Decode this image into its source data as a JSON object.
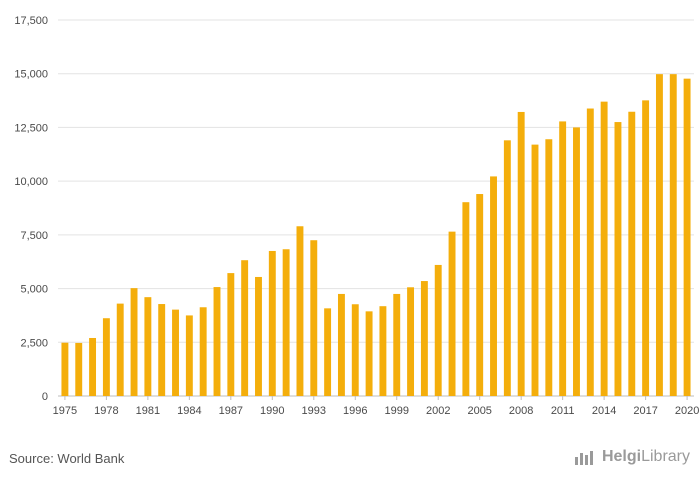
{
  "chart_data": {
    "type": "bar",
    "title": "",
    "xlabel": "",
    "ylabel": "",
    "ylim": [
      0,
      17500
    ],
    "yticks": [
      0,
      2500,
      5000,
      7500,
      10000,
      12500,
      15000,
      17500
    ],
    "ytick_labels": [
      "0",
      "2,500",
      "5,000",
      "7,500",
      "10,000",
      "12,500",
      "15,000",
      "17,500"
    ],
    "categories": [
      "1975",
      "1976",
      "1977",
      "1978",
      "1979",
      "1980",
      "1981",
      "1982",
      "1983",
      "1984",
      "1985",
      "1986",
      "1987",
      "1988",
      "1989",
      "1990",
      "1991",
      "1992",
      "1993",
      "1994",
      "1995",
      "1996",
      "1997",
      "1998",
      "1999",
      "2000",
      "2001",
      "2002",
      "2003",
      "2004",
      "2005",
      "2006",
      "2007",
      "2008",
      "2009",
      "2010",
      "2011",
      "2012",
      "2013",
      "2014",
      "2015",
      "2016",
      "2017",
      "2018",
      "2019",
      "2020"
    ],
    "xtick_labels": [
      "1975",
      "1978",
      "1981",
      "1984",
      "1987",
      "1990",
      "1993",
      "1996",
      "1999",
      "2002",
      "2005",
      "2008",
      "2011",
      "2014",
      "2017",
      "2020"
    ],
    "values": [
      2480,
      2470,
      2700,
      3620,
      4300,
      5020,
      4600,
      4280,
      4020,
      3750,
      4130,
      5070,
      5720,
      6320,
      5540,
      6750,
      6830,
      7900,
      7250,
      4080,
      4750,
      4270,
      3940,
      4180,
      4750,
      5060,
      5350,
      6100,
      7650,
      9020,
      9400,
      10220,
      11900,
      13220,
      11700,
      11950,
      12780,
      12500,
      13380,
      13700,
      12750,
      13230,
      13760,
      14980,
      14980,
      14770
    ],
    "bar_color": "#F4AE0B",
    "grid": true,
    "legend": "none"
  },
  "footer": {
    "source": "Source: World Bank",
    "brand_part1": "Helgi",
    "brand_part2": "Library",
    "brand_icon": "bar-chart-icon"
  }
}
